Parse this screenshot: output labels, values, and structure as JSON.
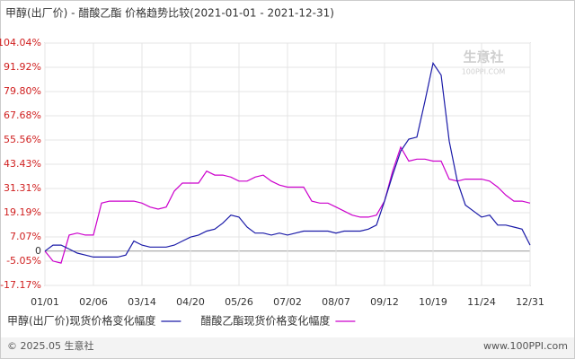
{
  "chart_data": {
    "type": "line",
    "title": "甲醇(出厂价) - 醋酸乙酯 价格趋势比较(2021-01-01 - 2021-12-31)",
    "categories": [
      "01/01",
      null,
      null,
      null,
      null,
      null,
      "02/06",
      null,
      null,
      null,
      null,
      null,
      "03/14",
      null,
      null,
      null,
      null,
      null,
      "04/20",
      null,
      null,
      null,
      null,
      null,
      "05/26",
      null,
      null,
      null,
      null,
      null,
      "07/02",
      null,
      null,
      null,
      null,
      null,
      "08/07",
      null,
      null,
      null,
      null,
      null,
      "09/12",
      null,
      null,
      null,
      null,
      null,
      "10/19",
      null,
      null,
      null,
      null,
      null,
      "11/24",
      null,
      null,
      null,
      null,
      null,
      "12/31"
    ],
    "series": [
      {
        "name": "甲醇(出厂价)现货价格变化幅度",
        "color": "#1a1aa8",
        "values": [
          0,
          3,
          3,
          1,
          -1,
          -2,
          -3,
          -3,
          -3,
          -3,
          -2,
          5,
          3,
          2,
          2,
          2,
          3,
          5,
          7,
          8,
          10,
          11,
          14,
          18,
          17,
          12,
          9,
          9,
          8,
          9,
          8,
          9,
          10,
          10,
          10,
          10,
          9,
          10,
          10,
          10,
          11,
          13,
          25,
          38,
          50,
          56,
          57,
          75,
          94,
          88,
          55,
          35,
          23,
          20,
          17,
          18,
          13,
          13,
          12,
          11,
          3
        ]
      },
      {
        "name": "醋酸乙酯现货价格变化幅度",
        "color": "#cc00cc",
        "values": [
          0,
          -5,
          -6,
          8,
          9,
          8,
          8,
          24,
          25,
          25,
          25,
          25,
          24,
          22,
          21,
          22,
          30,
          34,
          34,
          34,
          40,
          38,
          38,
          37,
          35,
          35,
          37,
          38,
          35,
          33,
          32,
          32,
          32,
          25,
          24,
          24,
          22,
          20,
          18,
          17,
          17,
          18,
          25,
          40,
          52,
          45,
          46,
          46,
          45,
          45,
          36,
          35,
          36,
          36,
          36,
          35,
          32,
          28,
          25,
          25,
          24
        ]
      }
    ],
    "ylim": [
      -17.17,
      104.04
    ],
    "yticks": [
      {
        "value": 104.04,
        "label": "104.04%"
      },
      {
        "value": 91.92,
        "label": "91.92%"
      },
      {
        "value": 79.8,
        "label": "79.80%"
      },
      {
        "value": 67.68,
        "label": "67.68%"
      },
      {
        "value": 55.56,
        "label": "55.56%"
      },
      {
        "value": 43.43,
        "label": "43.43%"
      },
      {
        "value": 31.31,
        "label": "31.31%"
      },
      {
        "value": 19.19,
        "label": "19.19%"
      },
      {
        "value": 7.07,
        "label": "7.07%"
      },
      0,
      {
        "value": -5.05,
        "label": "-5.05%"
      },
      {
        "value": -17.17,
        "label": "-17.17%"
      }
    ],
    "grid": true,
    "watermark": "生意社",
    "watermark_url": "100PPI.COM",
    "footer_left": "© 2025.05 生意社",
    "footer_right": "www.100PPI.com"
  }
}
